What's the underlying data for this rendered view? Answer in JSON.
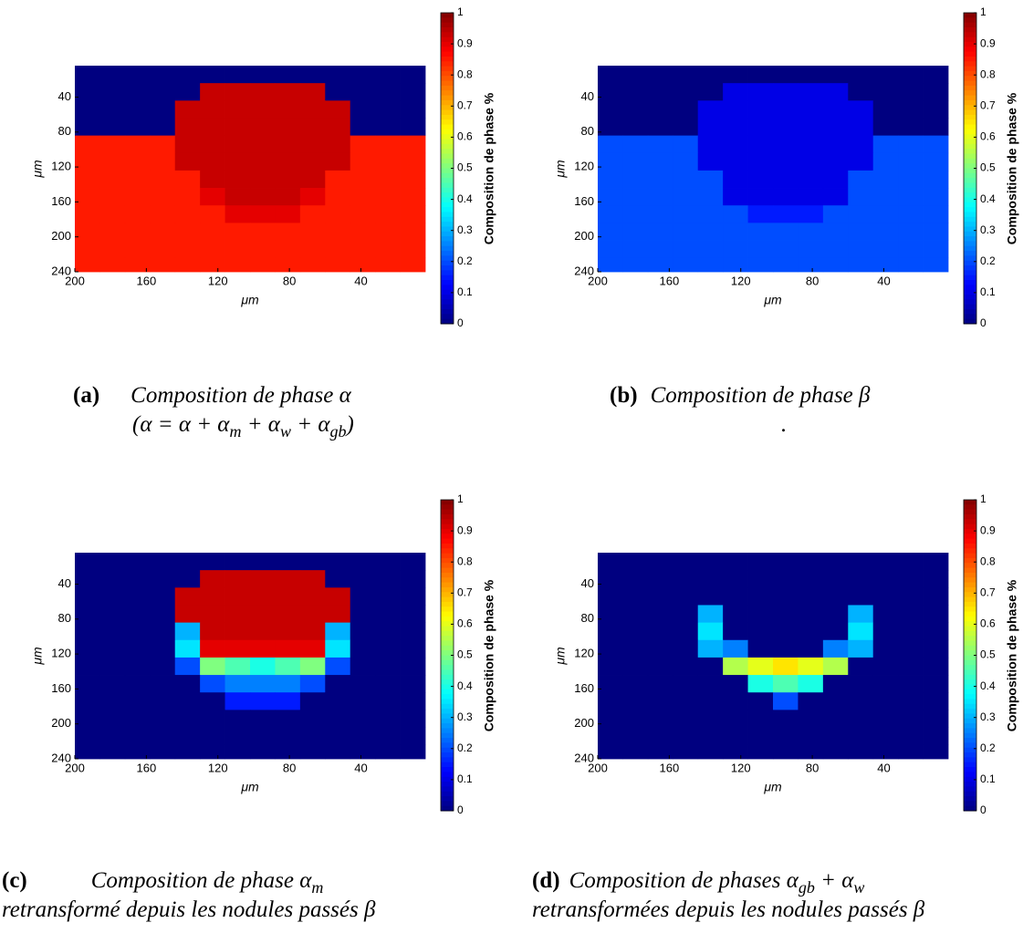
{
  "chart_data": [
    {
      "type": "heatmap",
      "colormap": "jet",
      "xlabel": "μm",
      "ylabel": "μm",
      "xlim": [
        200,
        4
      ],
      "ylim": [
        4,
        240
      ],
      "xticks": [
        200,
        160,
        120,
        80,
        40
      ],
      "yticks": [
        40,
        80,
        120,
        160,
        200,
        240
      ],
      "xbins": [
        200,
        186,
        172,
        158,
        144,
        130,
        116,
        102,
        88,
        74,
        60,
        46,
        32,
        18,
        4
      ],
      "ybins": [
        4,
        24,
        44,
        64,
        84,
        104,
        124,
        144,
        164,
        184,
        204,
        224,
        240
      ],
      "z": [
        [
          0,
          0,
          0,
          0,
          0,
          0,
          0,
          0,
          0,
          0,
          0,
          0,
          0,
          0
        ],
        [
          0,
          0,
          0,
          0,
          0,
          0.93,
          0.93,
          0.93,
          0.93,
          0.93,
          0,
          0,
          0,
          0
        ],
        [
          0,
          0,
          0,
          0,
          0.93,
          0.93,
          0.93,
          0.93,
          0.93,
          0.93,
          0.93,
          0,
          0,
          0
        ],
        [
          0,
          0,
          0,
          0,
          0.93,
          0.93,
          0.93,
          0.93,
          0.93,
          0.93,
          0.93,
          0,
          0,
          0
        ],
        [
          0.85,
          0.85,
          0.85,
          0.85,
          0.93,
          0.93,
          0.93,
          0.93,
          0.93,
          0.93,
          0.93,
          0.85,
          0.85,
          0.85
        ],
        [
          0.85,
          0.85,
          0.85,
          0.85,
          0.93,
          0.93,
          0.93,
          0.93,
          0.93,
          0.93,
          0.93,
          0.85,
          0.85,
          0.85
        ],
        [
          0.85,
          0.85,
          0.85,
          0.85,
          0.85,
          0.93,
          0.93,
          0.93,
          0.93,
          0.93,
          0.85,
          0.85,
          0.85,
          0.85
        ],
        [
          0.85,
          0.85,
          0.85,
          0.85,
          0.85,
          0.9,
          0.93,
          0.93,
          0.93,
          0.9,
          0.85,
          0.85,
          0.85,
          0.85
        ],
        [
          0.85,
          0.85,
          0.85,
          0.85,
          0.85,
          0.85,
          0.9,
          0.9,
          0.9,
          0.85,
          0.85,
          0.85,
          0.85,
          0.85
        ],
        [
          0.85,
          0.85,
          0.85,
          0.85,
          0.85,
          0.85,
          0.85,
          0.85,
          0.85,
          0.85,
          0.85,
          0.85,
          0.85,
          0.85
        ],
        [
          0.85,
          0.85,
          0.85,
          0.85,
          0.85,
          0.85,
          0.85,
          0.85,
          0.85,
          0.85,
          0.85,
          0.85,
          0.85,
          0.85
        ],
        [
          0.85,
          0.85,
          0.85,
          0.85,
          0.85,
          0.85,
          0.85,
          0.85,
          0.85,
          0.85,
          0.85,
          0.85,
          0.85,
          0.85
        ]
      ],
      "colorbar": {
        "label": "Composition de phase %",
        "lim": [
          0,
          1
        ],
        "ticks": [
          0,
          0.1,
          0.2,
          0.3,
          0.4,
          0.5,
          0.6,
          0.7,
          0.8,
          0.9,
          1
        ]
      },
      "caption": {
        "label": "(a)",
        "lines": [
          [
            "Composition de phase α"
          ],
          [
            "(α = α + α",
            "m",
            " + α",
            "w",
            " + α",
            "gb",
            ")"
          ]
        ]
      }
    },
    {
      "type": "heatmap",
      "colormap": "jet",
      "xlabel": "μm",
      "ylabel": "μm",
      "xlim": [
        200,
        4
      ],
      "ylim": [
        4,
        240
      ],
      "xticks": [
        200,
        160,
        120,
        80,
        40
      ],
      "yticks": [
        40,
        80,
        120,
        160,
        200,
        240
      ],
      "xbins": [
        200,
        186,
        172,
        158,
        144,
        130,
        116,
        102,
        88,
        74,
        60,
        46,
        32,
        18,
        4
      ],
      "ybins": [
        4,
        24,
        44,
        64,
        84,
        104,
        124,
        144,
        164,
        184,
        204,
        224,
        240
      ],
      "z": [
        [
          0,
          0,
          0,
          0,
          0,
          0,
          0,
          0,
          0,
          0,
          0,
          0,
          0,
          0
        ],
        [
          0,
          0,
          0,
          0,
          0,
          0.1,
          0.1,
          0.1,
          0.1,
          0.1,
          0,
          0,
          0,
          0
        ],
        [
          0,
          0,
          0,
          0,
          0.1,
          0.1,
          0.1,
          0.1,
          0.1,
          0.1,
          0.1,
          0,
          0,
          0
        ],
        [
          0,
          0,
          0,
          0,
          0.1,
          0.1,
          0.1,
          0.1,
          0.1,
          0.1,
          0.1,
          0,
          0,
          0
        ],
        [
          0.2,
          0.2,
          0.2,
          0.2,
          0.1,
          0.1,
          0.1,
          0.1,
          0.1,
          0.1,
          0.1,
          0.2,
          0.2,
          0.2
        ],
        [
          0.2,
          0.2,
          0.2,
          0.2,
          0.1,
          0.1,
          0.1,
          0.1,
          0.1,
          0.1,
          0.1,
          0.2,
          0.2,
          0.2
        ],
        [
          0.2,
          0.2,
          0.2,
          0.2,
          0.2,
          0.1,
          0.1,
          0.1,
          0.1,
          0.1,
          0.2,
          0.2,
          0.2,
          0.2
        ],
        [
          0.2,
          0.2,
          0.2,
          0.2,
          0.2,
          0.1,
          0.1,
          0.1,
          0.1,
          0.1,
          0.2,
          0.2,
          0.2,
          0.2
        ],
        [
          0.2,
          0.2,
          0.2,
          0.2,
          0.2,
          0.2,
          0.15,
          0.15,
          0.15,
          0.2,
          0.2,
          0.2,
          0.2,
          0.2
        ],
        [
          0.2,
          0.2,
          0.2,
          0.2,
          0.2,
          0.2,
          0.2,
          0.2,
          0.2,
          0.2,
          0.2,
          0.2,
          0.2,
          0.2
        ],
        [
          0.2,
          0.2,
          0.2,
          0.2,
          0.2,
          0.2,
          0.2,
          0.2,
          0.2,
          0.2,
          0.2,
          0.2,
          0.2,
          0.2
        ],
        [
          0.2,
          0.2,
          0.2,
          0.2,
          0.2,
          0.2,
          0.2,
          0.2,
          0.2,
          0.2,
          0.2,
          0.2,
          0.2,
          0.2
        ]
      ],
      "colorbar": {
        "label": "Composition de phase %",
        "lim": [
          0,
          1
        ],
        "ticks": [
          0,
          0.1,
          0.2,
          0.3,
          0.4,
          0.5,
          0.6,
          0.7,
          0.8,
          0.9,
          1
        ]
      },
      "caption": {
        "label": "(b)",
        "lines": [
          [
            "Composition de phase β"
          ],
          [
            "."
          ]
        ]
      }
    },
    {
      "type": "heatmap",
      "colormap": "jet",
      "xlabel": "μm",
      "ylabel": "μm",
      "xlim": [
        200,
        4
      ],
      "ylim": [
        4,
        240
      ],
      "xticks": [
        200,
        160,
        120,
        80,
        40
      ],
      "yticks": [
        40,
        80,
        120,
        160,
        200,
        240
      ],
      "xbins": [
        200,
        186,
        172,
        158,
        144,
        130,
        116,
        102,
        88,
        74,
        60,
        46,
        32,
        18,
        4
      ],
      "ybins": [
        4,
        24,
        44,
        64,
        84,
        104,
        124,
        144,
        164,
        184,
        204,
        224,
        240
      ],
      "z": [
        [
          0,
          0,
          0,
          0,
          0,
          0,
          0,
          0,
          0,
          0,
          0,
          0,
          0,
          0
        ],
        [
          0,
          0,
          0,
          0,
          0,
          0.93,
          0.93,
          0.93,
          0.93,
          0.93,
          0,
          0,
          0,
          0
        ],
        [
          0,
          0,
          0,
          0,
          0.93,
          0.93,
          0.93,
          0.93,
          0.93,
          0.93,
          0.93,
          0,
          0,
          0
        ],
        [
          0,
          0,
          0,
          0,
          0.93,
          0.93,
          0.93,
          0.93,
          0.93,
          0.93,
          0.93,
          0,
          0,
          0
        ],
        [
          0,
          0,
          0,
          0,
          0.3,
          0.93,
          0.93,
          0.93,
          0.93,
          0.93,
          0.3,
          0,
          0,
          0
        ],
        [
          0,
          0,
          0,
          0,
          0.35,
          0.9,
          0.9,
          0.9,
          0.9,
          0.9,
          0.35,
          0,
          0,
          0
        ],
        [
          0,
          0,
          0,
          0,
          0.2,
          0.5,
          0.45,
          0.4,
          0.45,
          0.5,
          0.2,
          0,
          0,
          0
        ],
        [
          0,
          0,
          0,
          0,
          0,
          0.2,
          0.25,
          0.25,
          0.25,
          0.2,
          0,
          0,
          0,
          0
        ],
        [
          0,
          0,
          0,
          0,
          0,
          0,
          0.15,
          0.15,
          0.15,
          0,
          0,
          0,
          0,
          0
        ],
        [
          0,
          0,
          0,
          0,
          0,
          0,
          0,
          0,
          0,
          0,
          0,
          0,
          0,
          0
        ],
        [
          0,
          0,
          0,
          0,
          0,
          0,
          0,
          0,
          0,
          0,
          0,
          0,
          0,
          0
        ],
        [
          0,
          0,
          0,
          0,
          0,
          0,
          0,
          0,
          0,
          0,
          0,
          0,
          0,
          0
        ]
      ],
      "colorbar": {
        "label": "Composition de phase %",
        "lim": [
          0,
          1
        ],
        "ticks": [
          0,
          0.1,
          0.2,
          0.3,
          0.4,
          0.5,
          0.6,
          0.7,
          0.8,
          0.9,
          1
        ]
      },
      "caption": {
        "label": "(c)",
        "lines": [
          [
            "Composition de phase α",
            "m"
          ],
          [
            "retransformé depuis les nodules passés β"
          ]
        ]
      }
    },
    {
      "type": "heatmap",
      "colormap": "jet",
      "xlabel": "μm",
      "ylabel": "μm",
      "xlim": [
        200,
        4
      ],
      "ylim": [
        4,
        240
      ],
      "xticks": [
        200,
        160,
        120,
        80,
        40
      ],
      "yticks": [
        40,
        80,
        120,
        160,
        200,
        240
      ],
      "xbins": [
        200,
        186,
        172,
        158,
        144,
        130,
        116,
        102,
        88,
        74,
        60,
        46,
        32,
        18,
        4
      ],
      "ybins": [
        4,
        24,
        44,
        64,
        84,
        104,
        124,
        144,
        164,
        184,
        204,
        224,
        240
      ],
      "z": [
        [
          0,
          0,
          0,
          0,
          0,
          0,
          0,
          0,
          0,
          0,
          0,
          0,
          0,
          0
        ],
        [
          0,
          0,
          0,
          0,
          0,
          0,
          0,
          0,
          0,
          0,
          0,
          0,
          0,
          0
        ],
        [
          0,
          0,
          0,
          0,
          0,
          0,
          0,
          0,
          0,
          0,
          0,
          0,
          0,
          0
        ],
        [
          0,
          0,
          0,
          0,
          0.3,
          0,
          0,
          0,
          0,
          0,
          0.3,
          0,
          0,
          0
        ],
        [
          0,
          0,
          0,
          0,
          0.35,
          0,
          0,
          0,
          0,
          0,
          0.35,
          0,
          0,
          0
        ],
        [
          0,
          0,
          0,
          0,
          0.3,
          0.25,
          0,
          0,
          0,
          0.25,
          0.3,
          0,
          0,
          0
        ],
        [
          0,
          0,
          0,
          0,
          0,
          0.55,
          0.6,
          0.65,
          0.6,
          0.55,
          0,
          0,
          0,
          0
        ],
        [
          0,
          0,
          0,
          0,
          0,
          0,
          0.4,
          0.45,
          0.4,
          0,
          0,
          0,
          0,
          0
        ],
        [
          0,
          0,
          0,
          0,
          0,
          0,
          0,
          0.2,
          0,
          0,
          0,
          0,
          0,
          0
        ],
        [
          0,
          0,
          0,
          0,
          0,
          0,
          0,
          0,
          0,
          0,
          0,
          0,
          0,
          0
        ],
        [
          0,
          0,
          0,
          0,
          0,
          0,
          0,
          0,
          0,
          0,
          0,
          0,
          0,
          0
        ],
        [
          0,
          0,
          0,
          0,
          0,
          0,
          0,
          0,
          0,
          0,
          0,
          0,
          0,
          0
        ]
      ],
      "colorbar": {
        "label": "Composition de phase %",
        "lim": [
          0,
          1
        ],
        "ticks": [
          0,
          0.1,
          0.2,
          0.3,
          0.4,
          0.5,
          0.6,
          0.7,
          0.8,
          0.9,
          1
        ]
      },
      "caption": {
        "label": "(d)",
        "lines": [
          [
            "Composition de phases α",
            "gb",
            " + α",
            "w"
          ],
          [
            "retransformées depuis les nodules passés β"
          ]
        ]
      }
    }
  ]
}
